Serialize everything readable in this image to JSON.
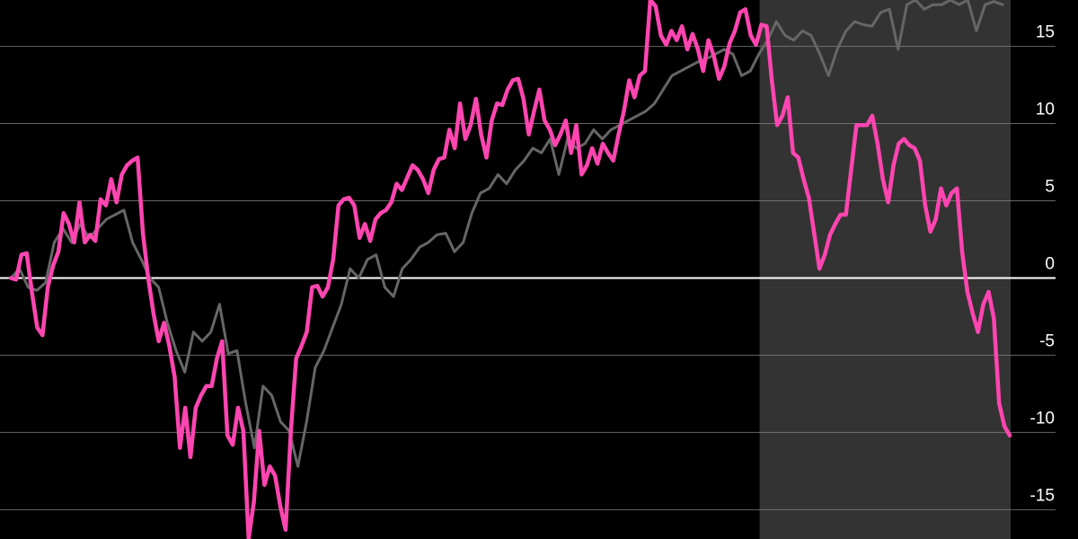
{
  "chart_data": {
    "type": "line",
    "title": "",
    "xlabel": "",
    "ylabel": "",
    "ylim": [
      -16.9,
      18
    ],
    "y_ticks": [
      15,
      10,
      5,
      0,
      -5,
      -10,
      -15
    ],
    "y_tick_labels": [
      "15",
      "10",
      "5",
      "0",
      "-5",
      "-10",
      "-15"
    ],
    "grid": true,
    "legend": "none",
    "highlight_region": {
      "x_start_index": 141,
      "x_end_index": 189,
      "color": "#333333"
    },
    "colors": {
      "background": "#000000",
      "grid": "#888888",
      "zero_line": "#ffffff",
      "tick_text": "#ffffff"
    },
    "series": [
      {
        "color": "#666666",
        "values": [
          0,
          0.6,
          -0.6,
          -0.8,
          -0.3,
          2.3,
          3.2,
          2.3,
          3.5,
          2.6,
          3.2,
          3.8,
          4.1,
          4.4,
          2.3,
          1.2,
          0,
          -0.6,
          -2.9,
          -4.7,
          -6.1,
          -3.5,
          -4.1,
          -3.5,
          -1.7,
          -4.9,
          -4.7,
          -8.1,
          -11.0,
          -7.0,
          -7.6,
          -9.3,
          -9.9,
          -12.2,
          -9.3,
          -5.8,
          -4.7,
          -3.2,
          -1.7,
          0.6,
          0,
          1.2,
          1.5,
          -0.6,
          -1.2,
          0.6,
          1.2,
          2.0,
          2.3,
          2.8,
          2.9,
          1.7,
          2.3,
          4.2,
          5.5,
          5.8,
          6.7,
          6.1,
          7.0,
          7.6,
          8.4,
          8.1,
          9.0,
          6.7,
          9.0,
          8.4,
          8.7,
          9.6,
          9.0,
          9.6,
          9.9,
          10.2,
          10.5,
          10.8,
          11.3,
          12.2,
          13.1,
          13.4,
          13.7,
          14.0,
          14.2,
          14.5,
          14.8,
          14.5,
          13.1,
          13.4,
          14.5,
          15.4,
          16.6,
          15.7,
          15.4,
          16.0,
          15.7,
          14.5,
          13.1,
          14.8,
          16.0,
          16.6,
          16.4,
          16.3,
          17.2,
          17.4,
          14.8,
          17.7,
          18.0,
          17.4,
          17.7,
          17.7,
          18.0,
          17.7,
          18.0,
          16.0,
          17.7,
          17.9,
          17.7
        ]
      },
      {
        "color": "#ff45b0",
        "values": [
          0,
          -0.1,
          1.5,
          1.6,
          -0.9,
          -3.2,
          -3.7,
          -0.6,
          0.8,
          1.7,
          4.2,
          3.5,
          2.3,
          4.9,
          2.3,
          2.8,
          2.4,
          5.1,
          4.7,
          6.4,
          4.9,
          6.7,
          7.3,
          7.6,
          7.8,
          2.9,
          0,
          -2.3,
          -4.1,
          -2.9,
          -4.4,
          -6.4,
          -11,
          -8.4,
          -11.6,
          -8.4,
          -7.6,
          -7.0,
          -7.0,
          -5.2,
          -4.1,
          -10.2,
          -10.8,
          -8.4,
          -9.9,
          -16.9,
          -14.5,
          -9.9,
          -13.4,
          -12.2,
          -12.8,
          -14.8,
          -16.3,
          -9.9,
          -5.2,
          -4.4,
          -3.5,
          -0.6,
          -0.5,
          -1.2,
          -0.6,
          1.2,
          4.7,
          5.1,
          5.2,
          4.7,
          2.6,
          3.5,
          2.4,
          3.8,
          4.2,
          4.4,
          4.9,
          6.1,
          5.7,
          6.5,
          7.3,
          7.0,
          6.4,
          5.5,
          7.0,
          7.7,
          7.8,
          9.6,
          8.4,
          11.3,
          9.0,
          9.9,
          11.6,
          9.3,
          7.8,
          10.2,
          11.3,
          11.2,
          12.2,
          12.8,
          12.9,
          11.6,
          9.3,
          10.8,
          12.2,
          10.2,
          9.6,
          8.6,
          9.3,
          10.2,
          8.1,
          9.9,
          6.7,
          7.3,
          8.4,
          7.4,
          8.7,
          8.1,
          7.6,
          9.3,
          10.8,
          12.8,
          11.7,
          13.1,
          13.4,
          18.0,
          17.6,
          15.7,
          15.1,
          16.0,
          15.4,
          16.3,
          14.8,
          15.8,
          14.8,
          13.4,
          15.4,
          14.4,
          12.9,
          13.7,
          15.2,
          16.0,
          17.2,
          17.4,
          15.7,
          15.1,
          16.4,
          16.3,
          12.8,
          9.9,
          10.5,
          11.7,
          8.1,
          7.8,
          6.4,
          5.2,
          2.9,
          0.6,
          1.5,
          2.8,
          3.5,
          4.1,
          4.1,
          7.0,
          9.9,
          9.9,
          9.9,
          10.5,
          8.7,
          6.4,
          4.9,
          7.3,
          8.7,
          9.0,
          8.6,
          8.4,
          7.6,
          4.7,
          3.0,
          3.8,
          5.8,
          4.7,
          5.5,
          5.8,
          1.7,
          -0.9,
          -2.3,
          -3.5,
          -1.7,
          -0.9,
          -2.6,
          -8.1,
          -9.6,
          -10.2
        ]
      }
    ]
  }
}
